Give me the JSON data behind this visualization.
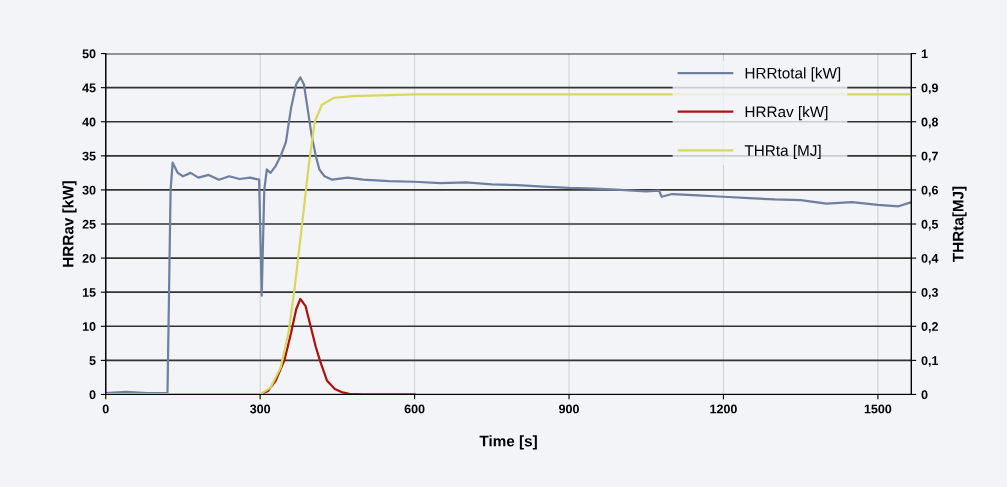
{
  "chart_data": {
    "type": "line",
    "xlabel": "Time [s]",
    "ylabel": "HRRav [kW]",
    "y2label": "THRta[MJ]",
    "xlim": [
      0,
      1565
    ],
    "xticks": [
      0,
      300,
      600,
      900,
      1200,
      1500
    ],
    "ylim": [
      0,
      50
    ],
    "yticks": [
      0,
      5,
      10,
      15,
      20,
      25,
      30,
      35,
      40,
      45,
      50
    ],
    "y2lim": [
      0,
      1
    ],
    "y2ticks": [
      {
        "value": 0,
        "label": "0"
      },
      {
        "value": 0.1,
        "label": "0,1"
      },
      {
        "value": 0.2,
        "label": "0,2"
      },
      {
        "value": 0.3,
        "label": "0,3"
      },
      {
        "value": 0.4,
        "label": "0,4"
      },
      {
        "value": 0.5,
        "label": "0,5"
      },
      {
        "value": 0.6,
        "label": "0,6"
      },
      {
        "value": 0.7,
        "label": "0,7"
      },
      {
        "value": 0.8,
        "label": "0,8"
      },
      {
        "value": 0.9,
        "label": "0,9"
      },
      {
        "value": 1,
        "label": "1"
      }
    ],
    "grid": true,
    "legend": "top right",
    "marker": "none",
    "line_style": "solid",
    "series": [
      {
        "name": "HRRtotal [kW]",
        "color": "#6f7fa0",
        "x": [
          0,
          40,
          80,
          120,
          126,
          130,
          140,
          150,
          165,
          180,
          200,
          220,
          240,
          260,
          280,
          298,
          303,
          308,
          313,
          320,
          330,
          340,
          350,
          360,
          370,
          378,
          385,
          392,
          400,
          408,
          415,
          425,
          440,
          470,
          500,
          550,
          600,
          650,
          700,
          750,
          800,
          850,
          900,
          950,
          1000,
          1050,
          1075,
          1080,
          1100,
          1150,
          1200,
          1250,
          1300,
          1350,
          1400,
          1450,
          1500,
          1540,
          1565
        ],
        "values": [
          0.2,
          0.4,
          0.2,
          0.2,
          30,
          34,
          32.5,
          32,
          32.5,
          31.8,
          32.2,
          31.5,
          32,
          31.6,
          31.8,
          31.5,
          14.5,
          30,
          33,
          32.5,
          33.5,
          35,
          37,
          42,
          45.5,
          46.5,
          45.5,
          42,
          38,
          35,
          33,
          32,
          31.5,
          31.8,
          31.5,
          31.3,
          31.2,
          31.0,
          31.1,
          30.8,
          30.7,
          30.5,
          30.3,
          30.2,
          30.0,
          29.8,
          29.9,
          29.0,
          29.4,
          29.2,
          29.0,
          28.8,
          28.6,
          28.5,
          28.0,
          28.2,
          27.8,
          27.6,
          28.2
        ]
      },
      {
        "name": "HRRav [kW]",
        "color": "#b01010",
        "x": [
          0,
          300,
          315,
          330,
          347,
          360,
          370,
          378,
          388,
          398,
          408,
          416,
          430,
          445,
          460,
          473,
          500,
          600
        ],
        "values": [
          0,
          0,
          0.5,
          2,
          5,
          9,
          12.5,
          14,
          13,
          10,
          7,
          5,
          2,
          0.8,
          0.3,
          0.1,
          0,
          0
        ]
      },
      {
        "name": "THRta [MJ]",
        "color": "#d8d860",
        "axis": "y2",
        "x": [
          0,
          300,
          320,
          340,
          355,
          366,
          380,
          395,
          406,
          420,
          443,
          480,
          600,
          1565
        ],
        "values": [
          0,
          0,
          0.02,
          0.08,
          0.18,
          0.3,
          0.48,
          0.68,
          0.8,
          0.85,
          0.87,
          0.875,
          0.88,
          0.88
        ]
      }
    ]
  }
}
